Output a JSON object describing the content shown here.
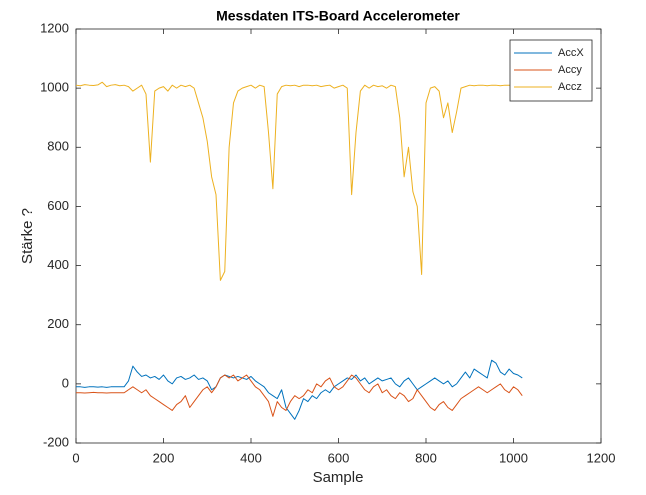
{
  "chart_data": {
    "type": "line",
    "title": "Messdaten ITS-Board Accelerometer",
    "x_label": "Sample",
    "y_label": "Stärke ?",
    "x": [
      0,
      10,
      20,
      30,
      40,
      50,
      60,
      70,
      80,
      90,
      100,
      110,
      120,
      130,
      140,
      150,
      160,
      170,
      180,
      190,
      200,
      210,
      220,
      230,
      240,
      250,
      260,
      270,
      280,
      290,
      300,
      310,
      320,
      330,
      340,
      350,
      360,
      370,
      380,
      390,
      400,
      410,
      420,
      430,
      440,
      450,
      460,
      470,
      480,
      490,
      500,
      510,
      520,
      530,
      540,
      550,
      560,
      570,
      580,
      590,
      600,
      610,
      620,
      630,
      640,
      650,
      660,
      670,
      680,
      690,
      700,
      710,
      720,
      730,
      740,
      750,
      760,
      770,
      780,
      790,
      800,
      810,
      820,
      830,
      840,
      850,
      860,
      870,
      880,
      890,
      900,
      910,
      920,
      930,
      940,
      950,
      960,
      970,
      980,
      990,
      1000,
      1010,
      1020
    ],
    "series": [
      {
        "name": "AccX",
        "color": "#0072bd",
        "values": [
          -10,
          -10,
          -12,
          -10,
          -10,
          -11,
          -10,
          -12,
          -10,
          -10,
          -10,
          -10,
          10,
          60,
          40,
          25,
          30,
          20,
          25,
          15,
          30,
          10,
          0,
          20,
          25,
          15,
          20,
          30,
          15,
          20,
          10,
          -20,
          -10,
          20,
          30,
          25,
          20,
          25,
          20,
          15,
          25,
          10,
          0,
          -10,
          -30,
          -40,
          -50,
          -20,
          -80,
          -100,
          -120,
          -90,
          -50,
          -60,
          -40,
          -50,
          -30,
          -20,
          -30,
          -10,
          0,
          10,
          20,
          15,
          30,
          10,
          20,
          0,
          10,
          20,
          10,
          15,
          20,
          0,
          -10,
          10,
          20,
          0,
          -20,
          -10,
          0,
          10,
          20,
          10,
          0,
          10,
          -10,
          0,
          20,
          40,
          20,
          50,
          40,
          30,
          20,
          80,
          70,
          40,
          30,
          50,
          35,
          30,
          20
        ]
      },
      {
        "name": "Accy",
        "color": "#d95319",
        "values": [
          -30,
          -30,
          -31,
          -30,
          -29,
          -30,
          -30,
          -31,
          -30,
          -30,
          -30,
          -30,
          -20,
          -10,
          -20,
          -30,
          -20,
          -40,
          -50,
          -60,
          -70,
          -80,
          -90,
          -70,
          -60,
          -40,
          -80,
          -60,
          -40,
          -20,
          -10,
          -30,
          -10,
          20,
          30,
          20,
          30,
          10,
          20,
          30,
          10,
          -10,
          -20,
          -40,
          -60,
          -110,
          -60,
          -80,
          -90,
          -60,
          -40,
          -50,
          -40,
          -20,
          -30,
          0,
          -10,
          10,
          20,
          -10,
          -20,
          -10,
          10,
          30,
          20,
          0,
          -20,
          -30,
          -10,
          0,
          -30,
          -20,
          -40,
          -50,
          -30,
          -40,
          -60,
          -50,
          -20,
          -40,
          -60,
          -80,
          -90,
          -70,
          -60,
          -80,
          -90,
          -70,
          -50,
          -40,
          -30,
          -20,
          -10,
          -20,
          -30,
          -20,
          -10,
          0,
          -20,
          -30,
          -10,
          -20,
          -40
        ]
      },
      {
        "name": "Accz",
        "color": "#edb120",
        "values": [
          1010,
          1008,
          1012,
          1010,
          1009,
          1011,
          1020,
          1005,
          1010,
          1012,
          1008,
          1010,
          1005,
          990,
          1000,
          1010,
          980,
          750,
          990,
          1000,
          1005,
          990,
          1010,
          1000,
          1010,
          1005,
          1010,
          1000,
          950,
          900,
          820,
          700,
          640,
          350,
          380,
          800,
          950,
          990,
          1000,
          1005,
          1010,
          1000,
          1010,
          1005,
          850,
          660,
          980,
          1005,
          1010,
          1008,
          1010,
          1005,
          1010,
          1010,
          1008,
          1010,
          1005,
          1008,
          1010,
          1000,
          1005,
          1010,
          1000,
          640,
          850,
          990,
          1010,
          1000,
          1010,
          1005,
          1008,
          1000,
          1010,
          1005,
          900,
          700,
          800,
          650,
          600,
          370,
          950,
          1000,
          1005,
          990,
          900,
          950,
          850,
          920,
          1000,
          1005,
          1010,
          1008,
          1010,
          1010,
          1008,
          1010,
          1010,
          1008,
          1010,
          1010,
          1008,
          1010,
          1010
        ]
      }
    ],
    "xlim": [
      0,
      1200
    ],
    "xticks": [
      0,
      200,
      400,
      600,
      800,
      1000,
      1200
    ],
    "ylim": [
      -200,
      1200
    ],
    "yticks": [
      -200,
      0,
      200,
      400,
      600,
      800,
      1000,
      1200
    ],
    "legend": "northeast"
  }
}
